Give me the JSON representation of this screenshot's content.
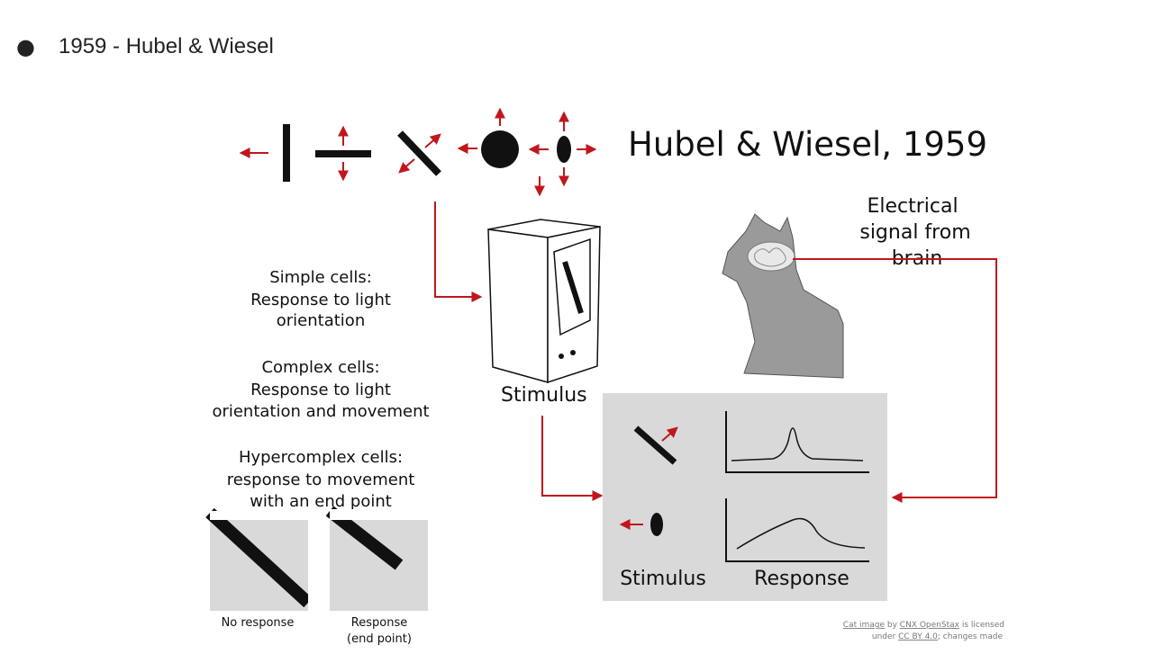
{
  "bullet": {
    "dot": "●",
    "text": "1959 - Hubel & Wiesel"
  },
  "figure": {
    "title": "Hubel & Wiesel, 1959",
    "signal_label": [
      "Electrical",
      "signal from",
      "brain"
    ],
    "stimulus_label": "Stimulus",
    "simple_cells": {
      "name": "Simple cells",
      "colon": ":",
      "desc": [
        "Response to light",
        "orientation"
      ]
    },
    "complex_cells": {
      "name": "Complex cells",
      "colon": ":",
      "desc": [
        "Response to light",
        "orientation and movement"
      ]
    },
    "hypercomplex_cells": {
      "name": "Hypercomplex cells",
      "colon": ":",
      "desc": [
        "response to movement",
        "with an end point"
      ]
    },
    "panel_no_response": "No response",
    "panel_response": [
      "Response",
      "(end point)"
    ],
    "results_stimulus": "Stimulus",
    "results_response": "Response",
    "credit_line1": {
      "link1": "Cat image",
      "by": " by ",
      "link2": "CNX OpenStax",
      "rest": " is licensed"
    },
    "credit_line2": {
      "pre": "under ",
      "link": "CC BY 4.0",
      "rest": "; changes made"
    },
    "colors": {
      "arrow": "#c0161c",
      "panel_bg": "#d9d9d9",
      "cat": "#9a9a9a",
      "ink": "#111111"
    },
    "icons": [
      "vertical-bar-icon",
      "horizontal-bar-icon",
      "diagonal-bar-icon",
      "circle-icon",
      "ellipse-icon",
      "monitor-icon",
      "cat-icon",
      "brain-icon",
      "response-curve-icon"
    ]
  }
}
